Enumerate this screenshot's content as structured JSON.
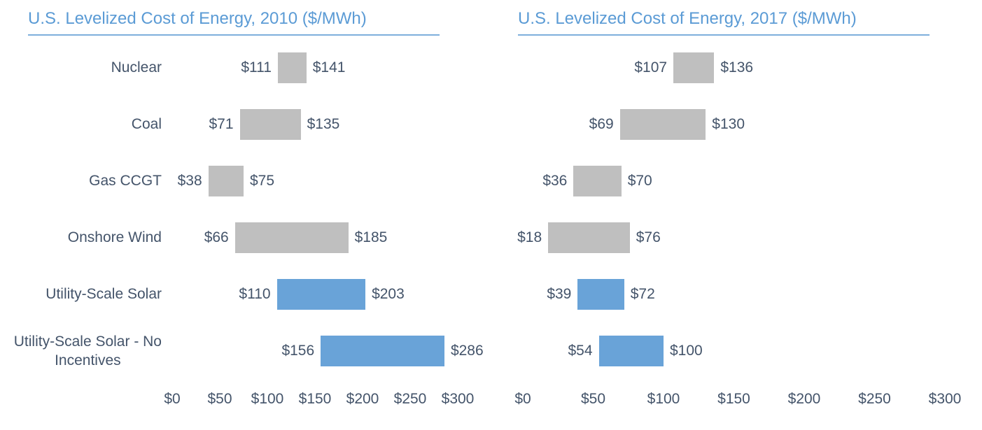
{
  "colors": {
    "page_background": "#FFFFFF",
    "title_text": "#5B9BD5",
    "title_underline": "#7EAFDC",
    "label_text": "#44546A",
    "base_bar": "#BFBFBF",
    "highlight_bar": "#69A3D8"
  },
  "chart_data": [
    {
      "type": "bar",
      "subtype": "horizontal-range",
      "title": "U.S. Levelized Cost of Energy, 2010 ($/MWh)",
      "value_prefix": "$",
      "xlim": [
        0,
        300
      ],
      "x_tick_values": [
        0,
        50,
        100,
        150,
        200,
        250,
        300
      ],
      "x_tick_labels": [
        "$0",
        "$50",
        "$100",
        "$150",
        "$200",
        "$250",
        "$300"
      ],
      "grid": false,
      "legend": "none",
      "show_category_labels": true,
      "categories": [
        "Nuclear",
        "Coal",
        "Gas CCGT",
        "Onshore Wind",
        "Utility-Scale Solar",
        "Utility-Scale Solar - No Incentives"
      ],
      "rows": [
        {
          "category": "Nuclear",
          "label_lines": [
            "Nuclear"
          ],
          "min": 111,
          "max": 141,
          "min_label": "$111",
          "max_label": "$141",
          "highlight": false
        },
        {
          "category": "Coal",
          "label_lines": [
            "Coal"
          ],
          "min": 71,
          "max": 135,
          "min_label": "$71",
          "max_label": "$135",
          "highlight": false
        },
        {
          "category": "Gas CCGT",
          "label_lines": [
            "Gas CCGT"
          ],
          "min": 38,
          "max": 75,
          "min_label": "$38",
          "max_label": "$75",
          "highlight": false
        },
        {
          "category": "Onshore Wind",
          "label_lines": [
            "Onshore Wind"
          ],
          "min": 66,
          "max": 185,
          "min_label": "$66",
          "max_label": "$185",
          "highlight": false
        },
        {
          "category": "Utility-Scale Solar",
          "label_lines": [
            "Utility-Scale Solar"
          ],
          "min": 110,
          "max": 203,
          "min_label": "$110",
          "max_label": "$203",
          "highlight": true
        },
        {
          "category": "Utility-Scale Solar - No Incentives",
          "label_lines": [
            "Utility-Scale Solar - No",
            "Incentives"
          ],
          "min": 156,
          "max": 286,
          "min_label": "$156",
          "max_label": "$286",
          "highlight": true
        }
      ]
    },
    {
      "type": "bar",
      "subtype": "horizontal-range",
      "title": "U.S. Levelized Cost of Energy, 2017 ($/MWh)",
      "value_prefix": "$",
      "xlim": [
        0,
        300
      ],
      "x_tick_values": [
        0,
        50,
        100,
        150,
        200,
        250,
        300
      ],
      "x_tick_labels": [
        "$0",
        "$50",
        "$100",
        "$150",
        "$200",
        "$250",
        "$300"
      ],
      "grid": false,
      "legend": "none",
      "show_category_labels": false,
      "categories": [
        "Nuclear",
        "Coal",
        "Gas CCGT",
        "Onshore Wind",
        "Utility-Scale Solar",
        "Utility-Scale Solar - No Incentives"
      ],
      "rows": [
        {
          "category": "Nuclear",
          "label_lines": [],
          "min": 107,
          "max": 136,
          "min_label": "$107",
          "max_label": "$136",
          "highlight": false
        },
        {
          "category": "Coal",
          "label_lines": [],
          "min": 69,
          "max": 130,
          "min_label": "$69",
          "max_label": "$130",
          "highlight": false
        },
        {
          "category": "Gas CCGT",
          "label_lines": [],
          "min": 36,
          "max": 70,
          "min_label": "$36",
          "max_label": "$70",
          "highlight": false
        },
        {
          "category": "Onshore Wind",
          "label_lines": [],
          "min": 18,
          "max": 76,
          "min_label": "$18",
          "max_label": "$76",
          "highlight": false
        },
        {
          "category": "Utility-Scale Solar",
          "label_lines": [],
          "min": 39,
          "max": 72,
          "min_label": "$39",
          "max_label": "$72",
          "highlight": true
        },
        {
          "category": "Utility-Scale Solar - No Incentives",
          "label_lines": [],
          "min": 54,
          "max": 100,
          "min_label": "$54",
          "max_label": "$100",
          "highlight": true
        }
      ]
    }
  ]
}
